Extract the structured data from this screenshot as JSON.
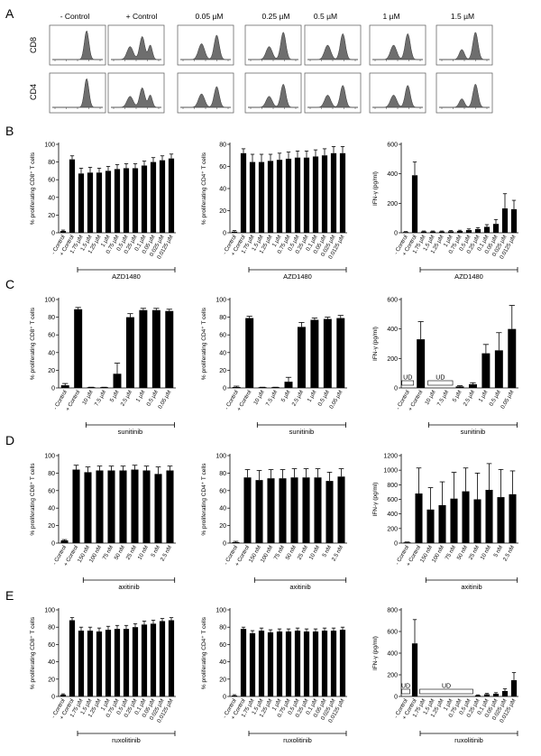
{
  "figure": {
    "panel_labels": [
      "A",
      "B",
      "C",
      "D",
      "E"
    ],
    "flow_row_labels": [
      "CD8",
      "CD4"
    ],
    "flow_conditions": [
      "- Control",
      "+ Control",
      "0.05 µM",
      "0.25 µM",
      "0.5 µM",
      "1 µM",
      "1.5 µM"
    ]
  },
  "chart_data": [
    {
      "id": "B1",
      "type": "bar",
      "ylabel": "% proliferating CD8⁺ T cells",
      "ylim": [
        0,
        100
      ],
      "yticks": [
        0,
        20,
        40,
        60,
        80,
        100
      ],
      "categories": [
        "- Control",
        "+ Control",
        "1.75 µM",
        "1.5 µM",
        "1.25 µM",
        "1 µM",
        "0.75 µM",
        "0.5 µM",
        "0.25 µM",
        "0.1 µM",
        "0.05 µM",
        "0.025 µM",
        "0.0125 µM"
      ],
      "values": [
        2,
        83,
        67,
        68,
        68,
        70,
        72,
        73,
        73,
        76,
        80,
        82,
        84
      ],
      "errors": [
        1,
        4,
        6,
        6,
        5,
        5,
        5,
        5,
        5,
        5,
        5,
        5,
        5
      ],
      "bracket": "AZD1480",
      "bracket_from": 2,
      "bracket_to": 12
    },
    {
      "id": "B2",
      "type": "bar",
      "ylabel": "% proliferating CD4⁺ T cells",
      "ylim": [
        0,
        80
      ],
      "yticks": [
        0,
        20,
        40,
        60,
        80
      ],
      "categories": [
        "- Control",
        "+ Control",
        "1.75 µM",
        "1.5 µM",
        "1.25 µM",
        "1 µM",
        "0.75 µM",
        "0.5 µM",
        "0.25 µM",
        "0.1 µM",
        "0.05 µM",
        "0.025 µM",
        "0.0125 µM"
      ],
      "values": [
        1,
        72,
        64,
        64,
        65,
        66,
        67,
        68,
        68,
        69,
        70,
        72,
        72
      ],
      "errors": [
        1,
        4,
        7,
        7,
        6,
        6,
        6,
        6,
        6,
        6,
        6,
        6,
        6
      ],
      "bracket": "AZD1480",
      "bracket_from": 2,
      "bracket_to": 12
    },
    {
      "id": "B3",
      "type": "bar",
      "ylabel": "IFN-γ (pg/ml)",
      "ylim": [
        0,
        600
      ],
      "yticks": [
        0,
        200,
        400,
        600
      ],
      "categories": [
        "- Control",
        "+ Control",
        "1.75 µM",
        "1.5 µM",
        "1.25 µM",
        "1 µM",
        "0.75 µM",
        "0.5 µM",
        "0.25 µM",
        "0.1 µM",
        "0.05 µM",
        "0.025 µM",
        "0.0125 µM"
      ],
      "values": [
        5,
        390,
        8,
        8,
        8,
        10,
        12,
        18,
        25,
        40,
        60,
        165,
        160
      ],
      "errors": [
        3,
        90,
        4,
        4,
        4,
        5,
        5,
        8,
        10,
        15,
        30,
        100,
        60
      ],
      "bracket": "AZD1480",
      "bracket_from": 2,
      "bracket_to": 12
    },
    {
      "id": "C1",
      "type": "bar",
      "ylabel": "% proliferating CD8⁺ T cells",
      "ylim": [
        0,
        100
      ],
      "yticks": [
        0,
        20,
        40,
        60,
        80,
        100
      ],
      "categories": [
        "- Control",
        "+ Control",
        "10 µM",
        "7.5 µM",
        "5 µM",
        "2.5 µM",
        "1 µM",
        "0.5 µM",
        "0.05 µM"
      ],
      "values": [
        3,
        89,
        0.5,
        0.5,
        16,
        80,
        88,
        88,
        87
      ],
      "errors": [
        2,
        2,
        0.3,
        0.3,
        12,
        4,
        2,
        2,
        2
      ],
      "bracket": "sunitinib",
      "bracket_from": 2,
      "bracket_to": 8
    },
    {
      "id": "C2",
      "type": "bar",
      "ylabel": "% proliferating CD4⁺ T cells",
      "ylim": [
        0,
        100
      ],
      "yticks": [
        0,
        20,
        40,
        60,
        80,
        100
      ],
      "categories": [
        "- Control",
        "+ Control",
        "10 µM",
        "7.5 µM",
        "5 µM",
        "2.5 µM",
        "1 µM",
        "0.5 µM",
        "0.05 µM"
      ],
      "values": [
        1,
        79,
        0.5,
        0.5,
        7,
        69,
        77,
        78,
        79
      ],
      "errors": [
        1,
        2,
        0.3,
        0.3,
        5,
        5,
        2,
        2,
        3
      ],
      "bracket": "sunitinib",
      "bracket_from": 2,
      "bracket_to": 8
    },
    {
      "id": "C3",
      "type": "bar",
      "ylabel": "IFN-γ (pg/ml)",
      "ylim": [
        0,
        600
      ],
      "yticks": [
        0,
        200,
        400,
        600
      ],
      "categories": [
        "- Control",
        "+ Control",
        "10 µM",
        "7.5 µM",
        "5 µM",
        "2.5 µM",
        "1 µM",
        "0.5 µM",
        "0.05 µM"
      ],
      "values": [
        0,
        330,
        0,
        0,
        10,
        25,
        235,
        255,
        400
      ],
      "errors": [
        0,
        120,
        0,
        0,
        5,
        10,
        60,
        120,
        160
      ],
      "ud": [
        {
          "label": "UD",
          "from": 0,
          "to": 0
        },
        {
          "label": "UD",
          "from": 2,
          "to": 3
        }
      ],
      "bracket": "sunitinib",
      "bracket_from": 2,
      "bracket_to": 8
    },
    {
      "id": "D1",
      "type": "bar",
      "ylabel": "% proliferating CD8⁺ T cells",
      "ylim": [
        0,
        100
      ],
      "yticks": [
        0,
        20,
        40,
        60,
        80,
        100
      ],
      "categories": [
        "- Control",
        "+ Control",
        "150 nM",
        "100 nM",
        "75 nM",
        "50 nM",
        "25 nM",
        "10 nM",
        "5 nM",
        "2.5 nM"
      ],
      "values": [
        3,
        84,
        81,
        83,
        83,
        83,
        84,
        83,
        79,
        83
      ],
      "errors": [
        1,
        5,
        6,
        5,
        5,
        5,
        5,
        5,
        8,
        5
      ],
      "bracket": "axitinib",
      "bracket_from": 2,
      "bracket_to": 9
    },
    {
      "id": "D2",
      "type": "bar",
      "ylabel": "% proliferating CD4⁺ T cells",
      "ylim": [
        0,
        100
      ],
      "yticks": [
        0,
        20,
        40,
        60,
        80,
        100
      ],
      "categories": [
        "- Control",
        "+ Control",
        "150 nM",
        "100 nM",
        "75 nM",
        "50 nM",
        "25 nM",
        "10 nM",
        "5 nM",
        "2.5 nM"
      ],
      "values": [
        1,
        75,
        72,
        74,
        74,
        75,
        75,
        75,
        71,
        76
      ],
      "errors": [
        1,
        9,
        11,
        10,
        10,
        10,
        10,
        10,
        10,
        9
      ],
      "bracket": "axitinib",
      "bracket_from": 2,
      "bracket_to": 9
    },
    {
      "id": "D3",
      "type": "bar",
      "ylabel": "IFN-γ (pg/ml)",
      "ylim": [
        0,
        1200
      ],
      "yticks": [
        0,
        200,
        400,
        600,
        800,
        1000,
        1200
      ],
      "categories": [
        "- Control",
        "+ Control",
        "150 nM",
        "100 nM",
        "75 nM",
        "50 nM",
        "25 nM",
        "10 nM",
        "5 nM",
        "2.5 nM"
      ],
      "values": [
        10,
        680,
        460,
        520,
        610,
        710,
        600,
        730,
        630,
        670
      ],
      "errors": [
        5,
        350,
        300,
        320,
        360,
        320,
        360,
        360,
        380,
        320
      ],
      "bracket": "axitinib",
      "bracket_from": 2,
      "bracket_to": 9
    },
    {
      "id": "E1",
      "type": "bar",
      "ylabel": "% proliferating CD8⁺ T cells",
      "ylim": [
        0,
        100
      ],
      "yticks": [
        0,
        20,
        40,
        60,
        80,
        100
      ],
      "categories": [
        "- Control",
        "+ Control",
        "1.75 µM",
        "1.5 µM",
        "1.25 µM",
        "1 µM",
        "0.75 µM",
        "0.5 µM",
        "0.25 µM",
        "0.1 µM",
        "0.05 µM",
        "0.025 µM",
        "0.0125 µM"
      ],
      "values": [
        2,
        88,
        76,
        76,
        75,
        77,
        78,
        78,
        80,
        83,
        84,
        87,
        88
      ],
      "errors": [
        1,
        3,
        4,
        4,
        4,
        4,
        4,
        4,
        4,
        4,
        4,
        3,
        3
      ],
      "bracket": "ruxolitinib",
      "bracket_from": 2,
      "bracket_to": 12
    },
    {
      "id": "E2",
      "type": "bar",
      "ylabel": "% proliferating CD4⁺ T cells",
      "ylim": [
        0,
        100
      ],
      "yticks": [
        0,
        20,
        40,
        60,
        80,
        100
      ],
      "categories": [
        "- Control",
        "+ Control",
        "1.75 µM",
        "1.5 µM",
        "1.25 µM",
        "1 µM",
        "0.75 µM",
        "0.5 µM",
        "0.25 µM",
        "0.1 µM",
        "0.05 µM",
        "0.025 µM",
        "0.0125 µM"
      ],
      "values": [
        1,
        78,
        73,
        76,
        74,
        75,
        75,
        76,
        75,
        75,
        76,
        76,
        77
      ],
      "errors": [
        1,
        2,
        3,
        3,
        3,
        3,
        3,
        3,
        3,
        3,
        3,
        3,
        3
      ],
      "bracket": "ruxolitinib",
      "bracket_from": 2,
      "bracket_to": 12
    },
    {
      "id": "E3",
      "type": "bar",
      "ylabel": "IFN-γ (pg/ml)",
      "ylim": [
        0,
        800
      ],
      "yticks": [
        0,
        200,
        400,
        600,
        800
      ],
      "categories": [
        "- Control",
        "+ Control",
        "1.75 µM",
        "1.5 µM",
        "1.25 µM",
        "1 µM",
        "0.75 µM",
        "0.5 µM",
        "0.25 µM",
        "0.1 µM",
        "0.05 µM",
        "0.025 µM",
        "0.0125 µM"
      ],
      "values": [
        0,
        490,
        0,
        0,
        0,
        0,
        0,
        0,
        10,
        20,
        25,
        50,
        150
      ],
      "errors": [
        0,
        220,
        0,
        0,
        0,
        0,
        0,
        0,
        5,
        8,
        10,
        20,
        70
      ],
      "ud": [
        {
          "label": "UD",
          "from": 0,
          "to": 0
        },
        {
          "label": "UD",
          "from": 2,
          "to": 7
        }
      ],
      "bracket": "ruxolitinib",
      "bracket_from": 2,
      "bracket_to": 12
    }
  ]
}
